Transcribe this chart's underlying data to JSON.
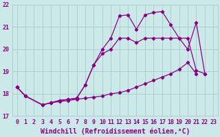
{
  "title": "",
  "xlabel": "Windchill (Refroidissement éolien,°C)",
  "bg_color": "#cce8e8",
  "grid_color": "#aacece",
  "line_color": "#880088",
  "xlim": [
    -0.5,
    23.5
  ],
  "ylim": [
    17,
    22
  ],
  "xticks": [
    0,
    1,
    2,
    3,
    4,
    5,
    6,
    7,
    8,
    9,
    10,
    11,
    12,
    13,
    14,
    15,
    16,
    17,
    18,
    19,
    20,
    21,
    22,
    23
  ],
  "yticks": [
    17,
    18,
    19,
    20,
    21,
    22
  ],
  "s1_x": [
    0,
    1,
    3,
    4,
    5,
    6,
    7,
    8,
    9,
    10,
    11,
    12,
    13,
    14,
    15,
    16,
    17,
    18,
    19,
    20,
    21
  ],
  "s1_y": [
    18.3,
    17.9,
    17.5,
    17.6,
    17.65,
    17.7,
    17.75,
    17.8,
    17.85,
    17.9,
    18.0,
    18.05,
    18.15,
    18.3,
    18.45,
    18.6,
    18.75,
    18.9,
    19.1,
    19.4,
    18.9
  ],
  "s2_x": [
    0,
    1,
    3,
    4,
    5,
    6,
    7,
    8,
    9,
    10,
    11,
    12,
    13,
    14,
    15,
    16,
    17,
    18,
    19,
    20,
    21,
    22
  ],
  "s2_y": [
    18.3,
    17.9,
    17.5,
    17.6,
    17.7,
    17.75,
    17.8,
    18.4,
    19.3,
    19.8,
    20.0,
    20.5,
    20.5,
    20.3,
    20.5,
    20.5,
    20.5,
    20.5,
    20.5,
    20.5,
    19.05,
    18.9
  ],
  "s3_x": [
    0,
    1,
    3,
    4,
    5,
    6,
    7,
    8,
    9,
    10,
    11,
    12,
    13,
    14,
    15,
    16,
    17,
    18,
    19,
    20,
    21,
    22
  ],
  "s3_y": [
    18.3,
    17.9,
    17.5,
    17.6,
    17.7,
    17.75,
    17.8,
    18.4,
    19.3,
    20.0,
    20.5,
    21.5,
    21.55,
    20.9,
    21.55,
    21.65,
    21.7,
    21.1,
    20.5,
    20.0,
    21.2,
    18.9
  ],
  "font_color": "#880088",
  "tick_fontsize": 6,
  "label_fontsize": 7
}
